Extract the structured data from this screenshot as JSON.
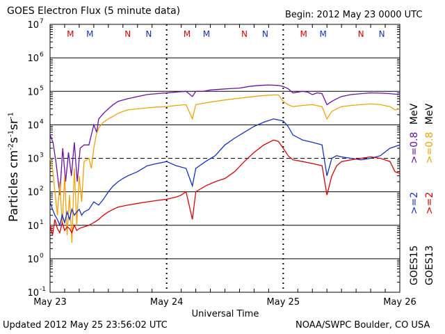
{
  "header": {
    "title": "GOES Electron Flux (5 minute data)",
    "begin": "Begin: 2012 May 23 0000 UTC"
  },
  "footer": {
    "updated": "Updated 2012 May 25 23:56:02 UTC",
    "source": "NOAA/SWPC Boulder, CO USA"
  },
  "colors": {
    "goes15_08": "#6a0dad",
    "goes13_08": "#f5a000",
    "goes15_2": "#1030d0",
    "goes13_2": "#e00000"
  },
  "legend": {
    "goes15": "GOES15",
    "goes13": "GOES13",
    "goes15_2_label": ">=2",
    "goes15_08_label": ">=0.8",
    "goes13_2_label": ">=2",
    "goes13_08_label": ">=0.8",
    "mev": "MeV"
  },
  "chart_data": {
    "type": "line",
    "title": "GOES Electron Flux (5 minute data)",
    "xlabel": "Universal Time",
    "ylabel": "Particles cm-2s-1sr-1",
    "yscale": "log",
    "ylim": [
      0.1,
      10000000
    ],
    "xlim": [
      0,
      72
    ],
    "x_unit": "hours since 2012 May 23 0000 UTC",
    "x_ticks": [
      {
        "x": 0,
        "label": "May 23"
      },
      {
        "x": 24,
        "label": "May 24"
      },
      {
        "x": 48,
        "label": "May 25"
      },
      {
        "x": 72,
        "label": "May 26"
      }
    ],
    "y_ticks": [
      {
        "exp": -1,
        "label": "10"
      },
      {
        "exp": 0,
        "label": "10"
      },
      {
        "exp": 1,
        "label": "10"
      },
      {
        "exp": 2,
        "label": "10"
      },
      {
        "exp": 3,
        "label": "10"
      },
      {
        "exp": 4,
        "label": "10"
      },
      {
        "exp": 5,
        "label": "10"
      },
      {
        "exp": 6,
        "label": "10"
      },
      {
        "exp": 7,
        "label": "10"
      }
    ],
    "y_exps": [
      "-1",
      "0",
      "1",
      "2",
      "3",
      "4",
      "5",
      "6",
      "7"
    ],
    "threshold_line": 1000,
    "markers": [
      {
        "x": 4.2,
        "label": "M",
        "sat": "goes13"
      },
      {
        "x": 8.2,
        "label": "M",
        "sat": "goes15"
      },
      {
        "x": 16.0,
        "label": "N",
        "sat": "goes13"
      },
      {
        "x": 20.3,
        "label": "N",
        "sat": "goes15"
      },
      {
        "x": 28.2,
        "label": "M",
        "sat": "goes13"
      },
      {
        "x": 32.2,
        "label": "M",
        "sat": "goes15"
      },
      {
        "x": 40.0,
        "label": "N",
        "sat": "goes13"
      },
      {
        "x": 44.3,
        "label": "N",
        "sat": "goes15"
      },
      {
        "x": 52.2,
        "label": "M",
        "sat": "goes13"
      },
      {
        "x": 56.2,
        "label": "M",
        "sat": "goes15"
      },
      {
        "x": 64.0,
        "label": "N",
        "sat": "goes13"
      },
      {
        "x": 68.3,
        "label": "N",
        "sat": "goes15"
      }
    ],
    "series": [
      {
        "name": "GOES15 >=0.8 MeV",
        "color": "#6a0dad",
        "x": [
          0,
          0.6,
          1.2,
          2,
          2.6,
          3.2,
          3.8,
          4.4,
          5,
          5.6,
          6.2,
          7,
          8,
          9,
          9.6,
          10,
          11,
          12,
          13,
          14,
          15,
          16,
          18,
          20,
          22,
          24,
          26,
          28,
          29.3,
          30,
          31.5,
          33,
          35,
          37,
          39,
          41,
          43,
          45,
          47,
          48,
          49,
          50,
          51,
          52,
          53,
          54,
          55,
          56,
          57,
          58,
          59,
          60,
          62,
          64,
          66,
          68,
          70,
          72
        ],
        "y": [
          5000,
          3000,
          800,
          80,
          2000,
          200,
          1500,
          300,
          3000,
          200,
          2000,
          2500,
          2500,
          10000,
          6000,
          15000,
          22000,
          30000,
          40000,
          50000,
          55000,
          60000,
          70000,
          80000,
          85000,
          90000,
          95000,
          100000,
          70000,
          100000,
          100000,
          110000,
          115000,
          120000,
          125000,
          140000,
          150000,
          155000,
          150000,
          140000,
          120000,
          90000,
          95000,
          100000,
          95000,
          80000,
          90000,
          85000,
          40000,
          50000,
          60000,
          70000,
          80000,
          85000,
          90000,
          88000,
          85000,
          80000
        ]
      },
      {
        "name": "GOES13 >=0.8 MeV",
        "color": "#f5a000",
        "x": [
          0,
          0.5,
          1,
          1.5,
          2,
          2.5,
          3,
          3.5,
          4,
          4.5,
          5,
          5.5,
          6,
          6.5,
          7,
          8,
          8.5,
          9,
          9.5,
          10,
          11,
          12,
          13,
          14,
          15,
          16,
          18,
          20,
          22,
          24,
          26,
          28,
          29.3,
          30,
          32,
          34,
          36,
          38,
          40,
          42,
          44,
          46,
          47,
          48,
          49,
          50,
          52,
          54,
          56,
          57,
          58,
          59,
          60,
          62,
          64,
          66,
          68,
          70,
          71,
          72
        ],
        "y": [
          1000,
          500,
          100,
          20,
          200,
          10,
          300,
          5,
          80,
          3,
          500,
          10,
          300,
          50,
          800,
          1000,
          500,
          2000,
          5000,
          8000,
          12000,
          15000,
          18000,
          22000,
          25000,
          28000,
          30000,
          32000,
          34000,
          35000,
          38000,
          40000,
          15000,
          40000,
          45000,
          50000,
          55000,
          60000,
          65000,
          70000,
          75000,
          78000,
          78000,
          50000,
          40000,
          35000,
          38000,
          40000,
          35000,
          15000,
          25000,
          30000,
          35000,
          38000,
          40000,
          42000,
          40000,
          35000,
          28000,
          30000
        ]
      },
      {
        "name": "GOES15 >=2 MeV",
        "color": "#1030d0",
        "x": [
          0,
          0.5,
          1,
          1.5,
          2,
          2.5,
          3,
          3.5,
          4,
          4.5,
          5,
          5.5,
          6,
          6.5,
          7,
          8,
          9,
          10,
          11,
          12,
          13,
          14,
          15,
          16,
          18,
          20,
          22,
          24,
          26,
          28,
          29.3,
          30,
          32,
          34,
          36,
          38,
          40,
          42,
          44,
          46,
          48,
          49,
          50,
          52,
          54,
          56,
          57,
          58,
          59,
          60,
          62,
          64,
          66,
          68,
          70,
          72
        ],
        "y": [
          50,
          30,
          20,
          15,
          10,
          20,
          12,
          25,
          15,
          30,
          20,
          25,
          30,
          20,
          25,
          30,
          50,
          40,
          60,
          100,
          150,
          200,
          250,
          300,
          400,
          600,
          700,
          800,
          600,
          500,
          150,
          500,
          800,
          1200,
          2500,
          4000,
          6000,
          9000,
          12000,
          15000,
          13000,
          9000,
          5000,
          3500,
          3000,
          2500,
          300,
          1000,
          1200,
          1100,
          1000,
          900,
          1000,
          1200,
          2000,
          2500
        ]
      },
      {
        "name": "GOES13 >=2 MeV",
        "color": "#e00000",
        "x": [
          0,
          0.5,
          1,
          1.5,
          2,
          2.5,
          3,
          3.5,
          4,
          4.5,
          5,
          5.5,
          6,
          7,
          8,
          9,
          10,
          11,
          12,
          13,
          14,
          16,
          18,
          20,
          22,
          24,
          25,
          26,
          27,
          28,
          29.3,
          30,
          32,
          34,
          36,
          38,
          40,
          42,
          44,
          46,
          47,
          48,
          49,
          50,
          52,
          54,
          56,
          57,
          58,
          59,
          60,
          62,
          64,
          66,
          68,
          70,
          71,
          72
        ],
        "y": [
          10,
          5,
          15,
          8,
          6,
          12,
          7,
          9,
          8,
          6,
          10,
          7,
          8,
          9,
          10,
          12,
          15,
          20,
          25,
          30,
          35,
          40,
          45,
          50,
          55,
          60,
          65,
          70,
          80,
          100,
          15,
          100,
          150,
          200,
          250,
          400,
          800,
          1500,
          2500,
          3500,
          3200,
          2000,
          1200,
          900,
          800,
          700,
          600,
          80,
          300,
          600,
          800,
          900,
          1000,
          1100,
          1000,
          800,
          400,
          350
        ]
      }
    ]
  }
}
